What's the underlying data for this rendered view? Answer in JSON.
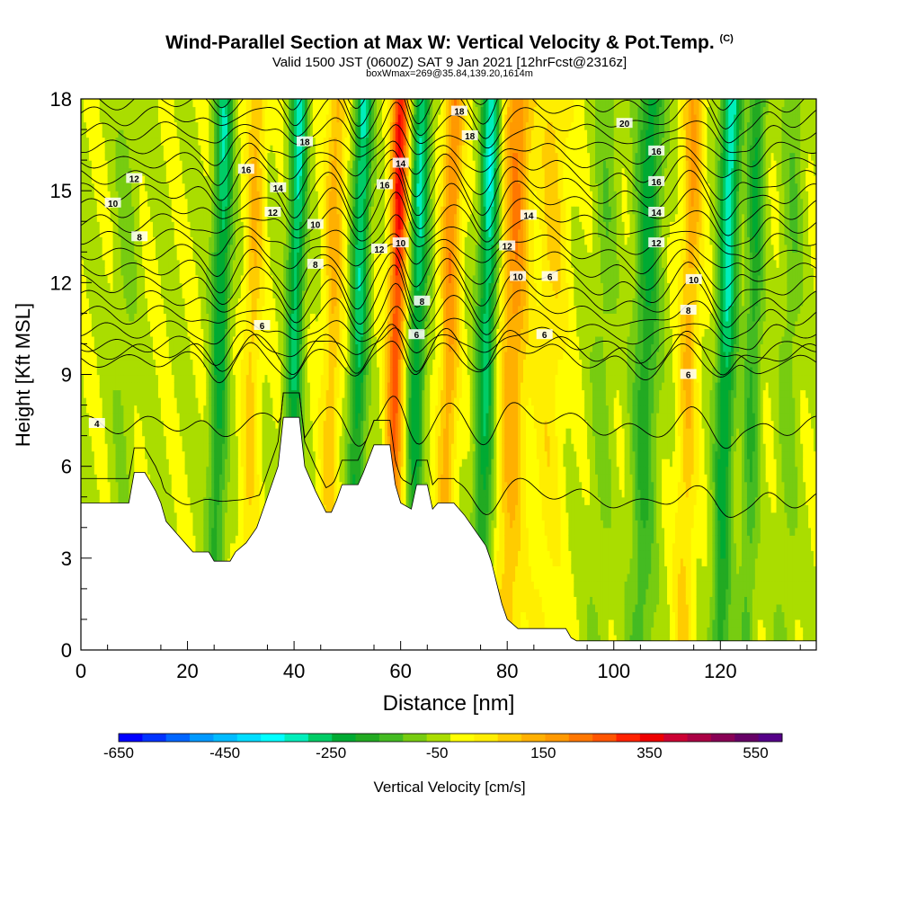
{
  "header": {
    "title": "Wind-Parallel Section at Max W: Vertical Velocity & Pot.Temp.",
    "title_mark": "(C)",
    "valid_line": "Valid 1500 JST (0600Z) SAT 9 Jan 2021 [12hrFcst@2316z]",
    "box_line": "boxWmax=269@35.84,139.20,1614m"
  },
  "chart_data": {
    "type": "heatmap",
    "xlabel": "Distance [nm]",
    "ylabel": "Height [Kft MSL]",
    "xlim": [
      0,
      138
    ],
    "ylim": [
      0,
      18
    ],
    "xticks": [
      "0",
      "20",
      "40",
      "60",
      "80",
      "100",
      "120"
    ],
    "yticks": [
      "0",
      "3",
      "6",
      "9",
      "12",
      "15",
      "18"
    ],
    "colorbar": {
      "label": "Vertical Velocity [cm/s]",
      "tick_labels": [
        "-650",
        "-450",
        "-250",
        "-50",
        "150",
        "350",
        "550"
      ],
      "min": -650,
      "max": 600,
      "step": 50,
      "colors": [
        "#0000ff",
        "#0033ff",
        "#0066ff",
        "#0099ff",
        "#00bbff",
        "#00ddff",
        "#00ffff",
        "#00eebb",
        "#00cc66",
        "#00aa33",
        "#22aa22",
        "#44bb22",
        "#77cc11",
        "#aadd00",
        "#ffff00",
        "#ffee00",
        "#ffcc00",
        "#ffb000",
        "#ff9900",
        "#ff7700",
        "#ff5500",
        "#ff2200",
        "#ee0000",
        "#cc0033",
        "#aa0044",
        "#880055",
        "#660066",
        "#550088"
      ]
    },
    "terrain_kft": [
      [
        0,
        4.8
      ],
      [
        9,
        4.8
      ],
      [
        10,
        5.8
      ],
      [
        12,
        5.8
      ],
      [
        13,
        5.5
      ],
      [
        14,
        5.2
      ],
      [
        15,
        4.8
      ],
      [
        16,
        4.2
      ],
      [
        18,
        3.8
      ],
      [
        20,
        3.4
      ],
      [
        21,
        3.2
      ],
      [
        24,
        3.2
      ],
      [
        25,
        2.9
      ],
      [
        28,
        2.9
      ],
      [
        29,
        3.2
      ],
      [
        31,
        3.5
      ],
      [
        33,
        4.0
      ],
      [
        35,
        5.0
      ],
      [
        37,
        6.0
      ],
      [
        38,
        7.6
      ],
      [
        41,
        7.6
      ],
      [
        42,
        6.0
      ],
      [
        44,
        5.2
      ],
      [
        46,
        4.5
      ],
      [
        47,
        4.5
      ],
      [
        48,
        4.9
      ],
      [
        49,
        5.4
      ],
      [
        52,
        5.4
      ],
      [
        53,
        5.8
      ],
      [
        55,
        6.7
      ],
      [
        58,
        6.7
      ],
      [
        59,
        5.4
      ],
      [
        60,
        4.8
      ],
      [
        62,
        4.6
      ],
      [
        63,
        5.4
      ],
      [
        65,
        5.4
      ],
      [
        66,
        4.6
      ],
      [
        67,
        4.8
      ],
      [
        70,
        4.8
      ],
      [
        72,
        4.4
      ],
      [
        74,
        3.9
      ],
      [
        76,
        3.4
      ],
      [
        77,
        2.9
      ],
      [
        78,
        2.2
      ],
      [
        79,
        1.5
      ],
      [
        80,
        1.0
      ],
      [
        82,
        0.7
      ],
      [
        91,
        0.7
      ],
      [
        92,
        0.4
      ],
      [
        93,
        0.3
      ],
      [
        138,
        0.3
      ]
    ],
    "velocity_plumes": [
      {
        "x": 8,
        "amp": -60,
        "w": 2.2
      },
      {
        "x": 26,
        "amp": -280,
        "w": 1.7
      },
      {
        "x": 32,
        "amp": 160,
        "w": 1.7
      },
      {
        "x": 40,
        "amp": -300,
        "w": 1.6
      },
      {
        "x": 47,
        "amp": 180,
        "w": 1.8
      },
      {
        "x": 52,
        "amp": -310,
        "w": 1.6
      },
      {
        "x": 59,
        "amp": 420,
        "w": 1.6
      },
      {
        "x": 63,
        "amp": -300,
        "w": 1.6
      },
      {
        "x": 69,
        "amp": 260,
        "w": 1.8
      },
      {
        "x": 76,
        "amp": -330,
        "w": 1.8
      },
      {
        "x": 81,
        "amp": 260,
        "w": 2.6
      },
      {
        "x": 88,
        "amp": 120,
        "w": 3.0
      },
      {
        "x": 98,
        "amp": -80,
        "w": 2.2
      },
      {
        "x": 106,
        "amp": -230,
        "w": 2.4
      },
      {
        "x": 114,
        "amp": 200,
        "w": 1.9
      },
      {
        "x": 121,
        "amp": -340,
        "w": 1.8
      },
      {
        "x": 126,
        "amp": -200,
        "w": 1.6
      },
      {
        "x": 133,
        "amp": -90,
        "w": 2.0
      }
    ],
    "isentropes": {
      "levels": [
        4,
        6,
        8,
        9,
        10,
        11,
        12,
        13,
        14,
        15,
        16,
        17,
        18,
        19,
        20,
        21,
        22,
        23,
        24,
        25,
        26,
        27
      ],
      "labeled": [
        {
          "text": "4",
          "x": 3,
          "y": 7.4
        },
        {
          "text": "6",
          "x": 34,
          "y": 10.6
        },
        {
          "text": "8",
          "x": 11,
          "y": 13.5
        },
        {
          "text": "10",
          "x": 6,
          "y": 14.6
        },
        {
          "text": "12",
          "x": 10,
          "y": 15.4
        },
        {
          "text": "16",
          "x": 31,
          "y": 15.7
        },
        {
          "text": "14",
          "x": 37,
          "y": 15.1
        },
        {
          "text": "12",
          "x": 36,
          "y": 14.3
        },
        {
          "text": "18",
          "x": 42,
          "y": 16.6
        },
        {
          "text": "10",
          "x": 44,
          "y": 13.9
        },
        {
          "text": "8",
          "x": 44,
          "y": 12.6
        },
        {
          "text": "12",
          "x": 56,
          "y": 13.1
        },
        {
          "text": "16",
          "x": 57,
          "y": 15.2
        },
        {
          "text": "14",
          "x": 60,
          "y": 15.9
        },
        {
          "text": "10",
          "x": 60,
          "y": 13.3
        },
        {
          "text": "18",
          "x": 71,
          "y": 17.6
        },
        {
          "text": "18",
          "x": 73,
          "y": 16.8
        },
        {
          "text": "8",
          "x": 64,
          "y": 11.4
        },
        {
          "text": "6",
          "x": 63,
          "y": 10.3
        },
        {
          "text": "14",
          "x": 84,
          "y": 14.2
        },
        {
          "text": "12",
          "x": 80,
          "y": 13.2
        },
        {
          "text": "10",
          "x": 82,
          "y": 12.2
        },
        {
          "text": "6",
          "x": 88,
          "y": 12.2
        },
        {
          "text": "6",
          "x": 87,
          "y": 10.3
        },
        {
          "text": "20",
          "x": 102,
          "y": 17.2
        },
        {
          "text": "16",
          "x": 108,
          "y": 16.3
        },
        {
          "text": "16",
          "x": 108,
          "y": 15.3
        },
        {
          "text": "14",
          "x": 108,
          "y": 14.3
        },
        {
          "text": "12",
          "x": 108,
          "y": 13.3
        },
        {
          "text": "10",
          "x": 115,
          "y": 12.1
        },
        {
          "text": "8",
          "x": 114,
          "y": 11.1
        },
        {
          "text": "6",
          "x": 114,
          "y": 9.0
        }
      ]
    }
  }
}
